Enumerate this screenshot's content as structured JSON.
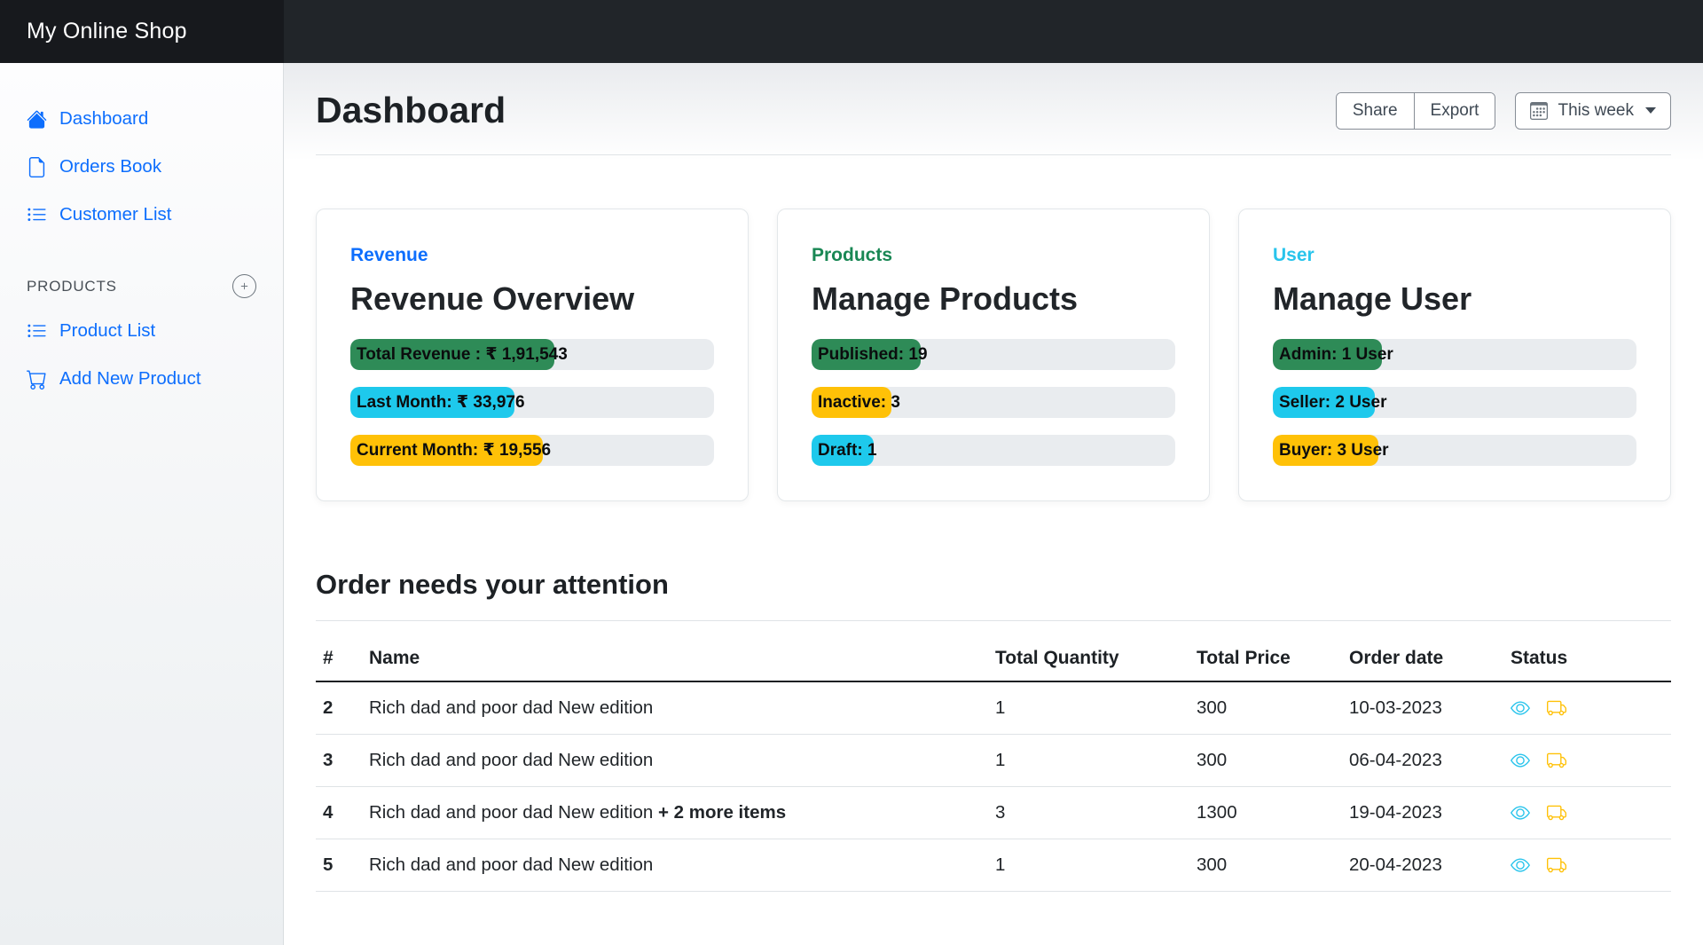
{
  "brand": {
    "title": "My Online Shop"
  },
  "sidebar": {
    "items": [
      {
        "label": "Dashboard",
        "icon": "house-icon",
        "name": "sidebar-item-dashboard"
      },
      {
        "label": "Orders Book",
        "icon": "file-icon",
        "name": "sidebar-item-orders-book"
      },
      {
        "label": "Customer List",
        "icon": "list-icon",
        "name": "sidebar-item-customer-list"
      }
    ],
    "section_label": "PRODUCTS",
    "section_plus_icon": "plus-circle-icon",
    "section_items": [
      {
        "label": "Product List",
        "icon": "list-icon",
        "name": "sidebar-item-product-list"
      },
      {
        "label": "Add New Product",
        "icon": "cart-icon",
        "name": "sidebar-item-add-new-product"
      }
    ]
  },
  "header": {
    "title": "Dashboard",
    "share_label": "Share",
    "export_label": "Export",
    "period_label": "This week",
    "period_icon": "calendar-icon"
  },
  "colors": {
    "link_blue": "#0d6efd",
    "success_green": "#198754",
    "info_cyan": "#29c4ec",
    "bar_green": "#2e8b57",
    "bar_cyan": "#1ec9ec",
    "bar_yellow": "#ffc107",
    "bar_track": "#e9ecef",
    "topbar_dark": "#212529"
  },
  "cards": [
    {
      "eyebrow": "Revenue",
      "eyebrow_color": "#0d6efd",
      "title": "Revenue Overview",
      "bars": [
        {
          "label": "Total Revenue : ₹ 1,91,543",
          "color": "#2e8b57",
          "percent": 56
        },
        {
          "label": "Last Month: ₹ 33,976",
          "color": "#1ec9ec",
          "percent": 45
        },
        {
          "label": "Current Month: ₹ 19,556",
          "color": "#ffc107",
          "percent": 53
        }
      ]
    },
    {
      "eyebrow": "Products",
      "eyebrow_color": "#198754",
      "title": "Manage Products",
      "bars": [
        {
          "label": "Published: 19",
          "color": "#2e8b57",
          "percent": 30
        },
        {
          "label": "Inactive: 3",
          "color": "#ffc107",
          "percent": 22
        },
        {
          "label": "Draft: 1",
          "color": "#1ec9ec",
          "percent": 17
        }
      ]
    },
    {
      "eyebrow": "User",
      "eyebrow_color": "#29c4ec",
      "title": "Manage User",
      "bars": [
        {
          "label": "Admin: 1 User",
          "color": "#2e8b57",
          "percent": 30
        },
        {
          "label": "Seller: 2 User",
          "color": "#1ec9ec",
          "percent": 28
        },
        {
          "label": "Buyer: 3 User",
          "color": "#ffc107",
          "percent": 29
        }
      ]
    }
  ],
  "orders": {
    "title": "Order needs your attention",
    "columns": [
      "#",
      "Name",
      "Total Quantity",
      "Total Price",
      "Order date",
      "Status"
    ],
    "rows": [
      {
        "num": "2",
        "name": "Rich dad and poor dad New edition",
        "extra": "",
        "qty": "1",
        "price": "300",
        "date": "10-03-2023"
      },
      {
        "num": "3",
        "name": "Rich dad and poor dad New edition",
        "extra": "",
        "qty": "1",
        "price": "300",
        "date": "06-04-2023"
      },
      {
        "num": "4",
        "name": "Rich dad and poor dad New edition ",
        "extra": "+ 2 more items",
        "qty": "3",
        "price": "1300",
        "date": "19-04-2023"
      },
      {
        "num": "5",
        "name": "Rich dad and poor dad New edition",
        "extra": "",
        "qty": "1",
        "price": "300",
        "date": "20-04-2023"
      }
    ],
    "status_icons": {
      "view": "eye-icon",
      "ship": "truck-icon"
    },
    "eye_color": "#29c4ec",
    "truck_color": "#ffc107"
  }
}
